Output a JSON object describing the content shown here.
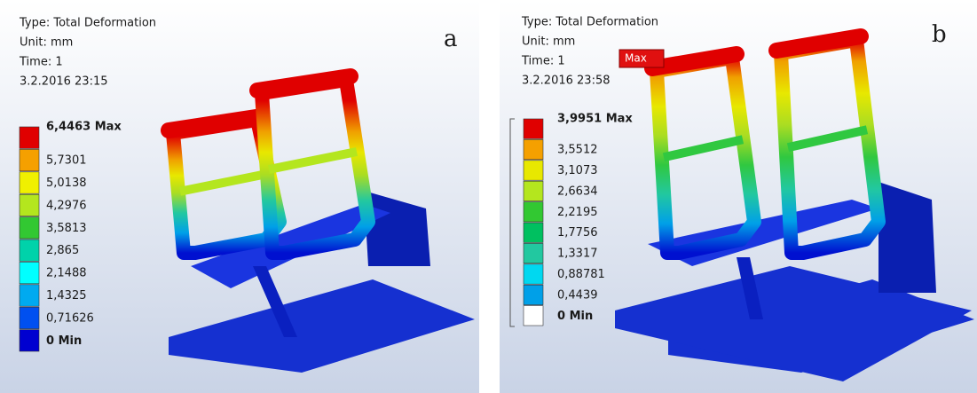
{
  "panels": [
    {
      "label": "a",
      "info": [
        "Type: Total Deformation",
        "Unit: mm",
        "Time: 1",
        "3.2.2016 23:15"
      ],
      "legend": [
        "6,4463 Max",
        "5,7301",
        "5,0138",
        "4,2976",
        "3,5813",
        "2,865",
        "2,1488",
        "1,4325",
        "0,71626",
        "0 Min"
      ]
    },
    {
      "label": "b",
      "info": [
        "Type: Total Deformation",
        "Unit: mm",
        "Time: 1",
        "3.2.2016 23:58"
      ],
      "legend": [
        "3,9951 Max",
        "3,5512",
        "3,1073",
        "2,6634",
        "2,2195",
        "1,7756",
        "1,3317",
        "0,88781",
        "0,4439",
        "0 Min"
      ],
      "marker": "Max"
    }
  ]
}
